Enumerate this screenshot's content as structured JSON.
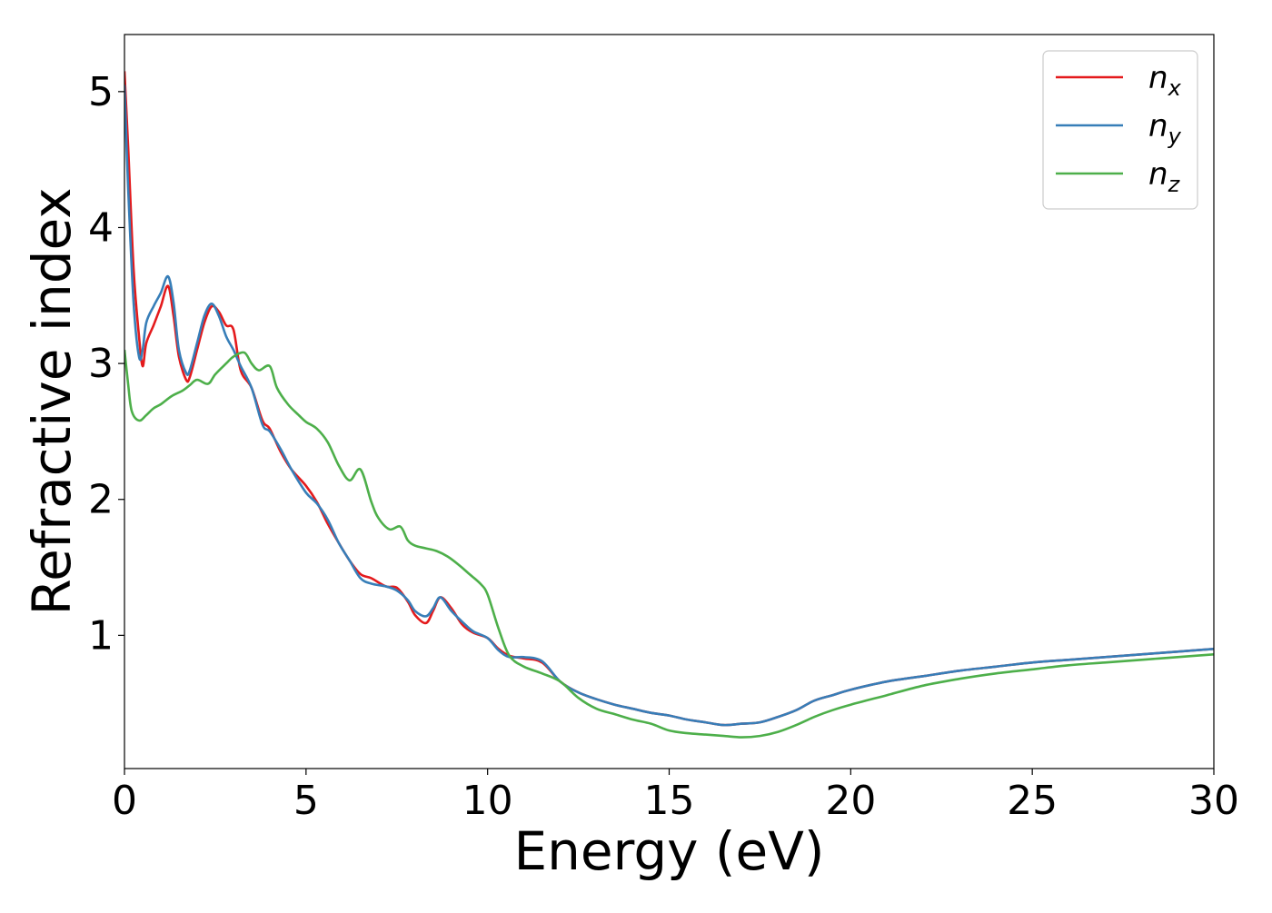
{
  "chart_data": {
    "type": "line",
    "title": "",
    "xlabel": "Energy (eV)",
    "ylabel": "Refractive index",
    "xlim": [
      0,
      30
    ],
    "ylim": [
      0.02,
      5.42
    ],
    "xticks": [
      0,
      5,
      10,
      15,
      20,
      25,
      30
    ],
    "yticks": [
      1,
      2,
      3,
      4,
      5
    ],
    "grid": false,
    "legend": {
      "position": "top-right"
    },
    "series": [
      {
        "name": "n",
        "subscript": "x",
        "color": "#e41a1c",
        "x": [
          0,
          0.1,
          0.25,
          0.4,
          0.5,
          0.6,
          0.8,
          1.0,
          1.2,
          1.35,
          1.5,
          1.7,
          1.8,
          2.0,
          2.2,
          2.4,
          2.6,
          2.8,
          3.0,
          3.2,
          3.5,
          3.8,
          4.0,
          4.3,
          4.6,
          5.0,
          5.3,
          5.6,
          5.9,
          6.2,
          6.5,
          6.8,
          7.2,
          7.5,
          7.8,
          8.0,
          8.3,
          8.5,
          8.7,
          9.0,
          9.3,
          9.6,
          10.0,
          10.3,
          10.6,
          11.0,
          11.5,
          12.0,
          12.5,
          13.0,
          13.5,
          14.0,
          14.5,
          15.0,
          15.5,
          16.0,
          16.5,
          17.0,
          17.5,
          18.0,
          18.5,
          19.0,
          19.5,
          20.0,
          21.0,
          22.0,
          23.0,
          24.0,
          25.0,
          26.0,
          27.0,
          28.0,
          29.0,
          30.0
        ],
        "y": [
          5.15,
          4.6,
          3.7,
          3.2,
          2.98,
          3.15,
          3.28,
          3.42,
          3.57,
          3.35,
          3.05,
          2.88,
          2.9,
          3.1,
          3.3,
          3.42,
          3.38,
          3.28,
          3.25,
          2.95,
          2.82,
          2.58,
          2.52,
          2.35,
          2.22,
          2.1,
          1.98,
          1.82,
          1.68,
          1.55,
          1.45,
          1.42,
          1.36,
          1.35,
          1.25,
          1.15,
          1.09,
          1.18,
          1.28,
          1.2,
          1.08,
          1.02,
          0.98,
          0.9,
          0.85,
          0.83,
          0.8,
          0.66,
          0.58,
          0.53,
          0.49,
          0.46,
          0.43,
          0.41,
          0.38,
          0.36,
          0.34,
          0.35,
          0.36,
          0.4,
          0.45,
          0.52,
          0.56,
          0.6,
          0.66,
          0.7,
          0.74,
          0.77,
          0.8,
          0.82,
          0.84,
          0.86,
          0.88,
          0.9
        ]
      },
      {
        "name": "n",
        "subscript": "y",
        "color": "#377eb8",
        "x": [
          0,
          0.1,
          0.25,
          0.4,
          0.5,
          0.6,
          0.8,
          1.0,
          1.2,
          1.35,
          1.5,
          1.7,
          1.8,
          2.0,
          2.2,
          2.4,
          2.6,
          2.8,
          3.0,
          3.2,
          3.5,
          3.8,
          4.0,
          4.3,
          4.6,
          5.0,
          5.3,
          5.6,
          5.9,
          6.2,
          6.5,
          6.8,
          7.2,
          7.5,
          7.8,
          8.0,
          8.3,
          8.5,
          8.7,
          9.0,
          9.3,
          9.6,
          10.0,
          10.3,
          10.6,
          11.0,
          11.5,
          12.0,
          12.5,
          13.0,
          13.5,
          14.0,
          14.5,
          15.0,
          15.5,
          16.0,
          16.5,
          17.0,
          17.5,
          18.0,
          18.5,
          19.0,
          19.5,
          20.0,
          21.0,
          22.0,
          23.0,
          24.0,
          25.0,
          26.0,
          27.0,
          28.0,
          29.0,
          30.0
        ],
        "y": [
          5.05,
          4.3,
          3.45,
          3.05,
          3.1,
          3.3,
          3.42,
          3.52,
          3.64,
          3.45,
          3.1,
          2.93,
          2.95,
          3.15,
          3.35,
          3.44,
          3.35,
          3.2,
          3.1,
          2.98,
          2.82,
          2.55,
          2.5,
          2.37,
          2.22,
          2.05,
          1.97,
          1.85,
          1.68,
          1.55,
          1.42,
          1.38,
          1.36,
          1.33,
          1.26,
          1.18,
          1.14,
          1.2,
          1.28,
          1.18,
          1.1,
          1.03,
          0.98,
          0.89,
          0.84,
          0.84,
          0.81,
          0.66,
          0.58,
          0.53,
          0.49,
          0.46,
          0.43,
          0.41,
          0.38,
          0.36,
          0.34,
          0.35,
          0.36,
          0.4,
          0.45,
          0.52,
          0.56,
          0.6,
          0.66,
          0.7,
          0.74,
          0.77,
          0.8,
          0.82,
          0.84,
          0.86,
          0.88,
          0.9
        ]
      },
      {
        "name": "n",
        "subscript": "z",
        "color": "#4daf4a",
        "x": [
          0,
          0.1,
          0.2,
          0.4,
          0.6,
          0.8,
          1.0,
          1.3,
          1.6,
          1.8,
          2.0,
          2.3,
          2.5,
          2.8,
          3.0,
          3.3,
          3.5,
          3.7,
          4.0,
          4.2,
          4.5,
          4.8,
          5.0,
          5.3,
          5.6,
          5.9,
          6.2,
          6.5,
          6.8,
          7.0,
          7.3,
          7.6,
          7.8,
          8.0,
          8.3,
          8.6,
          8.9,
          9.2,
          9.5,
          9.8,
          10.0,
          10.3,
          10.6,
          11.0,
          11.5,
          12.0,
          12.5,
          13.0,
          13.5,
          14.0,
          14.5,
          15.0,
          15.5,
          16.0,
          16.5,
          17.0,
          17.5,
          18.0,
          18.5,
          19.0,
          19.5,
          20.0,
          21.0,
          22.0,
          23.0,
          24.0,
          25.0,
          26.0,
          27.0,
          28.0,
          29.0,
          30.0
        ],
        "y": [
          3.1,
          2.85,
          2.65,
          2.58,
          2.62,
          2.67,
          2.7,
          2.76,
          2.8,
          2.84,
          2.88,
          2.85,
          2.92,
          3.0,
          3.05,
          3.08,
          3.0,
          2.95,
          2.98,
          2.82,
          2.7,
          2.62,
          2.57,
          2.52,
          2.42,
          2.25,
          2.14,
          2.22,
          1.98,
          1.86,
          1.78,
          1.8,
          1.7,
          1.66,
          1.64,
          1.62,
          1.58,
          1.52,
          1.45,
          1.38,
          1.3,
          1.05,
          0.85,
          0.77,
          0.72,
          0.66,
          0.54,
          0.46,
          0.42,
          0.38,
          0.35,
          0.3,
          0.28,
          0.27,
          0.26,
          0.25,
          0.26,
          0.29,
          0.34,
          0.4,
          0.45,
          0.49,
          0.56,
          0.63,
          0.68,
          0.72,
          0.75,
          0.78,
          0.8,
          0.82,
          0.84,
          0.86
        ]
      }
    ]
  }
}
